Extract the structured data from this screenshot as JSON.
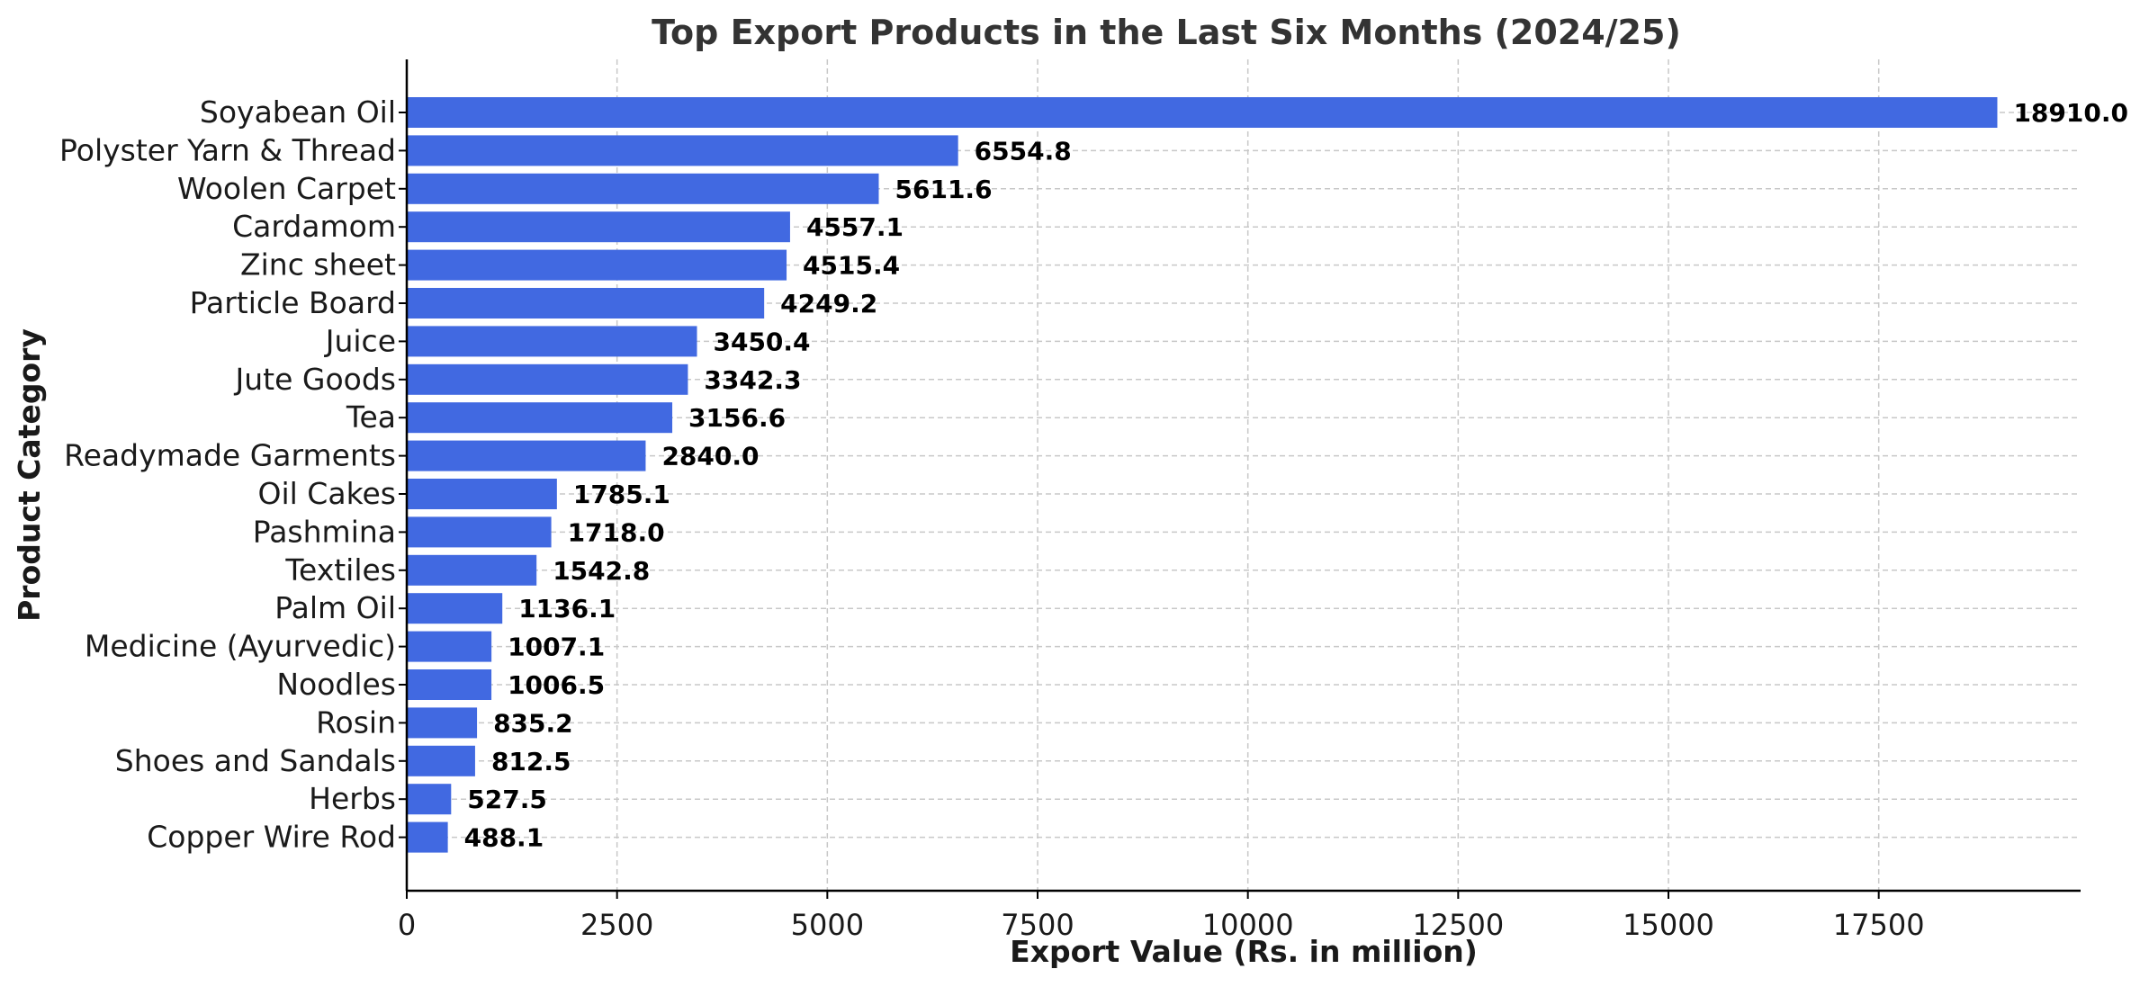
{
  "chart_data": {
    "type": "bar",
    "orientation": "horizontal",
    "title": "Top Export Products in the Last Six Months (2024/25)",
    "xlabel": "Export Value (Rs. in million)",
    "ylabel": "Product Category",
    "xlim": [
      0,
      19900
    ],
    "xticks": [
      0,
      2500,
      5000,
      7500,
      10000,
      12500,
      15000,
      17500
    ],
    "grid": true,
    "bar_color": "#4169e1",
    "categories": [
      "Soyabean Oil",
      "Polyster Yarn & Thread",
      "Woolen Carpet",
      "Cardamom",
      "Zinc sheet",
      "Particle Board",
      "Juice",
      "Jute Goods",
      "Tea",
      "Readymade Garments",
      "Oil Cakes",
      "Pashmina",
      "Textiles",
      "Palm Oil",
      "Medicine (Ayurvedic)",
      "Noodles",
      "Rosin",
      "Shoes and Sandals",
      "Herbs",
      "Copper Wire Rod"
    ],
    "values": [
      18910.0,
      6554.8,
      5611.6,
      4557.1,
      4515.4,
      4249.2,
      3450.4,
      3342.3,
      3156.6,
      2840.0,
      1785.1,
      1718.0,
      1542.8,
      1136.1,
      1007.1,
      1006.5,
      835.2,
      812.5,
      527.5,
      488.1
    ],
    "value_labels": [
      "18910.0",
      "6554.8",
      "5611.6",
      "4557.1",
      "4515.4",
      "4249.2",
      "3450.4",
      "3342.3",
      "3156.6",
      "2840.0",
      "1785.1",
      "1718.0",
      "1542.8",
      "1136.1",
      "1007.1",
      "1006.5",
      "835.2",
      "812.5",
      "527.5",
      "488.1"
    ]
  }
}
